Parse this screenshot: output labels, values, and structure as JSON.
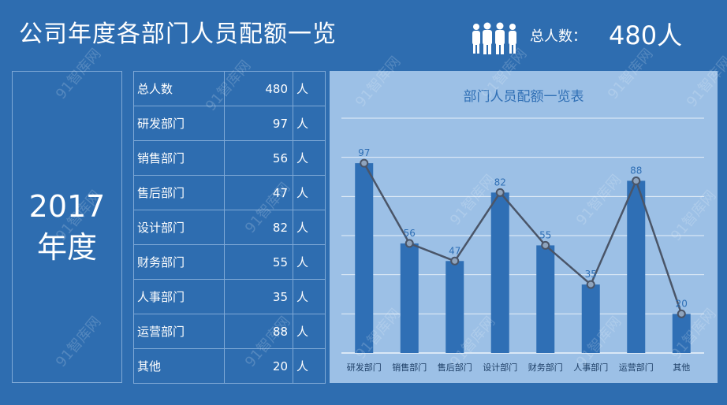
{
  "header": {
    "title": "公司年度各部门人员配额一览",
    "total_label": "总人数：",
    "total_value": "480人",
    "people_icon": "people-group-icon"
  },
  "year": {
    "line1": "2017",
    "line2": "年度"
  },
  "table": {
    "rows": [
      {
        "name": "总人数",
        "value": "480",
        "unit": "人"
      },
      {
        "name": "研发部门",
        "value": "97",
        "unit": "人"
      },
      {
        "name": "销售部门",
        "value": "56",
        "unit": "人"
      },
      {
        "name": "售后部门",
        "value": "47",
        "unit": "人"
      },
      {
        "name": "设计部门",
        "value": "82",
        "unit": "人"
      },
      {
        "name": "财务部门",
        "value": "55",
        "unit": "人"
      },
      {
        "name": "人事部门",
        "value": "35",
        "unit": "人"
      },
      {
        "name": "运营部门",
        "value": "88",
        "unit": "人"
      },
      {
        "name": "其他",
        "value": "20",
        "unit": "人"
      }
    ]
  },
  "watermark": "91智库网",
  "colors": {
    "background": "#2e6db0",
    "panel": "#9cc0e6",
    "bar": "#2f6fb5",
    "line": "#4a5568"
  },
  "chart_data": {
    "type": "bar",
    "title": "部门人员配额一览表",
    "categories": [
      "研发部门",
      "销售部门",
      "售后部门",
      "设计部门",
      "财务部门",
      "人事部门",
      "运营部门",
      "其他"
    ],
    "values": [
      97,
      56,
      47,
      82,
      55,
      35,
      88,
      20
    ],
    "overlay": "line",
    "ylim": [
      0,
      120
    ],
    "grid": true,
    "data_labels": true
  }
}
